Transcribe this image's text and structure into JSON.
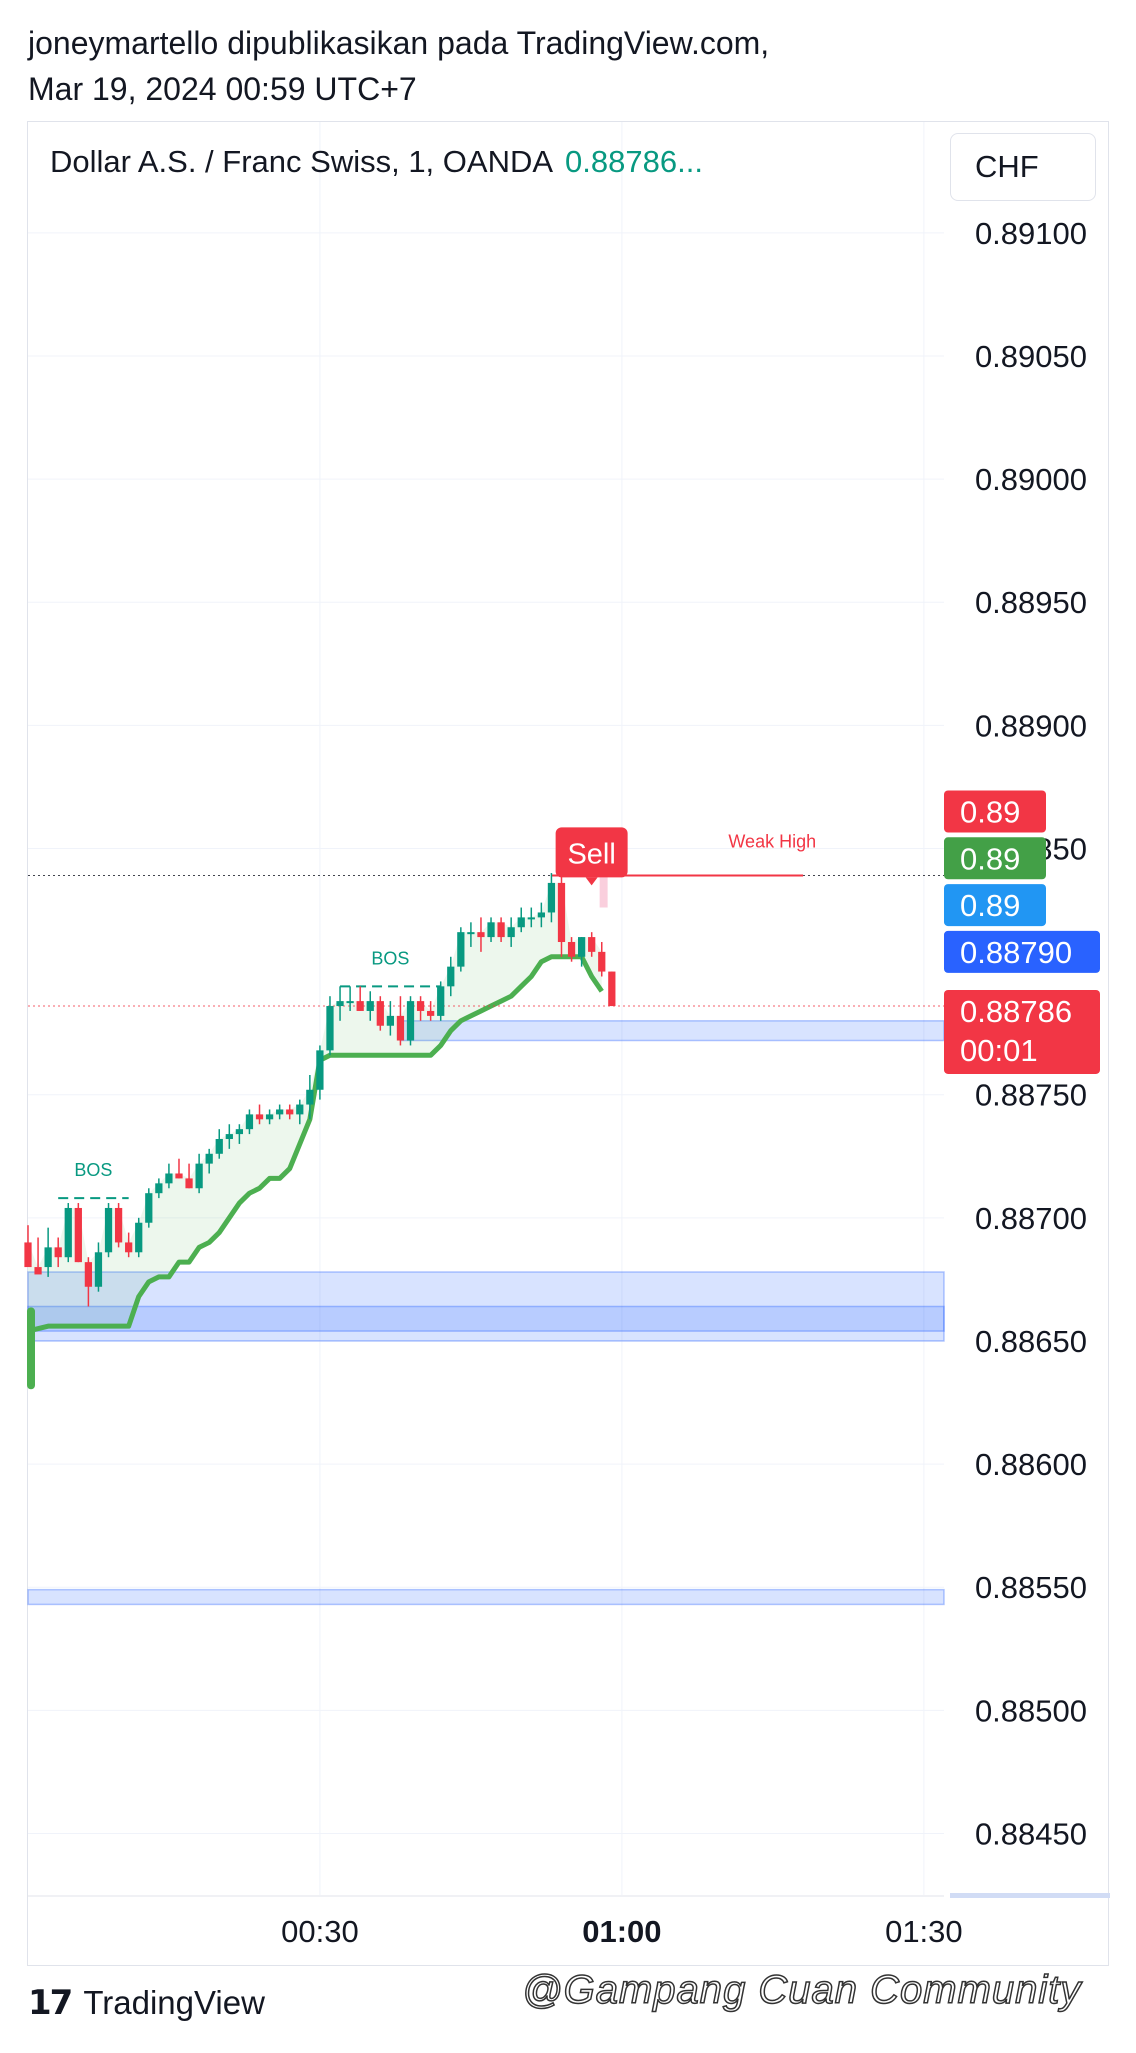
{
  "header": {
    "line1": "joneymartello dipublikasikan pada TradingView.com,",
    "line2": "Mar 19, 2024 00:59 UTC+7"
  },
  "symbol": {
    "title": "Dollar A.S. / Franc Swiss, 1, OANDA",
    "price": "0.88786..."
  },
  "currency_button": "CHF",
  "footer": {
    "brand_mark": "17",
    "brand": "TradingView"
  },
  "watermark": "@Gampang Cuan Community",
  "colors": {
    "up": "#089981",
    "down": "#f23645",
    "trail": "#4caf50",
    "zone": "#2962ff",
    "blue_tag": "#2196f3",
    "dark_blue_tag": "#2962ff"
  },
  "chart_data": {
    "type": "candlestick",
    "ylim": [
      0.88425,
      0.89145
    ],
    "y_ticks": [
      "0.89100",
      "0.89050",
      "0.89000",
      "0.88950",
      "0.88900",
      "0.88850",
      "0.88750",
      "0.88700",
      "0.88650",
      "0.88600",
      "0.88550",
      "0.88500",
      "0.88450"
    ],
    "x_ticks": [
      {
        "t": 30,
        "label": "00:30",
        "bold": false
      },
      {
        "t": 60,
        "label": "01:00",
        "bold": true
      },
      {
        "t": 90,
        "label": "01:30",
        "bold": false
      }
    ],
    "x_range": [
      1,
      92
    ],
    "candles": [
      [
        1,
        0.8869,
        0.88697,
        0.88682,
        0.8868
      ],
      [
        2,
        0.8868,
        0.88692,
        0.8868,
        0.88677
      ],
      [
        3,
        0.8868,
        0.88696,
        0.88676,
        0.88688
      ],
      [
        4,
        0.88688,
        0.88692,
        0.8868,
        0.88684
      ],
      [
        5,
        0.88684,
        0.88706,
        0.88682,
        0.88704
      ],
      [
        6,
        0.88704,
        0.88706,
        0.88682,
        0.88682
      ],
      [
        7,
        0.88682,
        0.88684,
        0.88664,
        0.88672
      ],
      [
        8,
        0.88672,
        0.8869,
        0.8867,
        0.88686
      ],
      [
        9,
        0.88686,
        0.88706,
        0.88684,
        0.88704
      ],
      [
        10,
        0.88704,
        0.88706,
        0.88688,
        0.8869
      ],
      [
        11,
        0.8869,
        0.88694,
        0.88684,
        0.88686
      ],
      [
        12,
        0.88686,
        0.887,
        0.88684,
        0.88698
      ],
      [
        13,
        0.88698,
        0.88712,
        0.88696,
        0.8871
      ],
      [
        14,
        0.8871,
        0.88716,
        0.88708,
        0.88714
      ],
      [
        15,
        0.88714,
        0.88722,
        0.88712,
        0.88718
      ],
      [
        16,
        0.88718,
        0.88724,
        0.88716,
        0.88716
      ],
      [
        17,
        0.88716,
        0.88722,
        0.88712,
        0.88712
      ],
      [
        18,
        0.88712,
        0.88726,
        0.8871,
        0.88722
      ],
      [
        19,
        0.88722,
        0.88728,
        0.88718,
        0.88726
      ],
      [
        20,
        0.88726,
        0.88736,
        0.88724,
        0.88732
      ],
      [
        21,
        0.88732,
        0.88738,
        0.88728,
        0.88734
      ],
      [
        22,
        0.88734,
        0.88738,
        0.8873,
        0.88736
      ],
      [
        23,
        0.88736,
        0.88744,
        0.88734,
        0.88742
      ],
      [
        24,
        0.88742,
        0.88746,
        0.88738,
        0.8874
      ],
      [
        25,
        0.8874,
        0.88744,
        0.88738,
        0.88742
      ],
      [
        26,
        0.88742,
        0.88746,
        0.8874,
        0.88744
      ],
      [
        27,
        0.88744,
        0.88746,
        0.8874,
        0.88742
      ],
      [
        28,
        0.88742,
        0.88748,
        0.88738,
        0.88746
      ],
      [
        29,
        0.88746,
        0.88758,
        0.8874,
        0.88752
      ],
      [
        30,
        0.88752,
        0.8877,
        0.88748,
        0.88768
      ],
      [
        31,
        0.88768,
        0.8879,
        0.88766,
        0.88786
      ],
      [
        32,
        0.88786,
        0.88794,
        0.8878,
        0.88788
      ],
      [
        33,
        0.88788,
        0.88794,
        0.88784,
        0.88788
      ],
      [
        34,
        0.88788,
        0.88794,
        0.88784,
        0.88784
      ],
      [
        35,
        0.88784,
        0.88792,
        0.8878,
        0.88788
      ],
      [
        36,
        0.88788,
        0.8879,
        0.88776,
        0.88778
      ],
      [
        37,
        0.88778,
        0.88788,
        0.88774,
        0.88782
      ],
      [
        38,
        0.88782,
        0.8879,
        0.8877,
        0.88772
      ],
      [
        39,
        0.88772,
        0.8879,
        0.8877,
        0.88788
      ],
      [
        40,
        0.88788,
        0.8879,
        0.8878,
        0.88784
      ],
      [
        41,
        0.88784,
        0.88788,
        0.8878,
        0.88782
      ],
      [
        42,
        0.88782,
        0.88796,
        0.8878,
        0.88794
      ],
      [
        43,
        0.88794,
        0.88806,
        0.8879,
        0.88802
      ],
      [
        44,
        0.88802,
        0.88818,
        0.888,
        0.88816
      ],
      [
        45,
        0.88816,
        0.8882,
        0.8881,
        0.88816
      ],
      [
        46,
        0.88816,
        0.88822,
        0.88808,
        0.88814
      ],
      [
        47,
        0.88814,
        0.88822,
        0.88812,
        0.8882
      ],
      [
        48,
        0.8882,
        0.88822,
        0.88812,
        0.88814
      ],
      [
        49,
        0.88814,
        0.88822,
        0.8881,
        0.88818
      ],
      [
        50,
        0.88818,
        0.88826,
        0.88816,
        0.88822
      ],
      [
        51,
        0.88822,
        0.88826,
        0.88818,
        0.88822
      ],
      [
        52,
        0.88822,
        0.88828,
        0.88818,
        0.88824
      ],
      [
        53,
        0.88824,
        0.8884,
        0.8882,
        0.88836
      ],
      [
        54,
        0.88836,
        0.8884,
        0.88806,
        0.88812
      ],
      [
        55,
        0.88812,
        0.88814,
        0.88804,
        0.88806
      ],
      [
        56,
        0.88806,
        0.88814,
        0.88802,
        0.88814
      ],
      [
        57,
        0.88814,
        0.88816,
        0.88806,
        0.88808
      ],
      [
        58,
        0.88808,
        0.88812,
        0.88798,
        0.888
      ],
      [
        59,
        0.888,
        0.888,
        0.88786,
        0.88786
      ]
    ],
    "trailing_line": [
      [
        1,
        0.88654
      ],
      [
        3,
        0.88656
      ],
      [
        9,
        0.88656
      ],
      [
        11,
        0.88656
      ],
      [
        12,
        0.88668
      ],
      [
        13,
        0.88674
      ],
      [
        14,
        0.88676
      ],
      [
        15,
        0.88676
      ],
      [
        16,
        0.88682
      ],
      [
        17,
        0.88682
      ],
      [
        18,
        0.88688
      ],
      [
        19,
        0.8869
      ],
      [
        20,
        0.88694
      ],
      [
        21,
        0.887
      ],
      [
        22,
        0.88706
      ],
      [
        23,
        0.8871
      ],
      [
        24,
        0.88712
      ],
      [
        25,
        0.88716
      ],
      [
        26,
        0.88716
      ],
      [
        27,
        0.8872
      ],
      [
        28,
        0.8873
      ],
      [
        29,
        0.8874
      ],
      [
        30,
        0.88764
      ],
      [
        31,
        0.88766
      ],
      [
        32,
        0.88766
      ],
      [
        38,
        0.88766
      ],
      [
        40,
        0.88766
      ],
      [
        41,
        0.88766
      ],
      [
        42,
        0.8877
      ],
      [
        43,
        0.88776
      ],
      [
        44,
        0.8878
      ],
      [
        45,
        0.88782
      ],
      [
        46,
        0.88784
      ],
      [
        47,
        0.88786
      ],
      [
        48,
        0.88788
      ],
      [
        49,
        0.8879
      ],
      [
        50,
        0.88794
      ],
      [
        51,
        0.88798
      ],
      [
        52,
        0.88804
      ],
      [
        53,
        0.88806
      ],
      [
        55,
        0.88806
      ],
      [
        56,
        0.88806
      ],
      [
        57,
        0.88798
      ],
      [
        58,
        0.88792
      ]
    ],
    "zones": [
      {
        "y1": 0.88678,
        "y2": 0.8865,
        "t1": 1,
        "t2": 92
      },
      {
        "y1": 0.88664,
        "y2": 0.88654,
        "t1": 1,
        "t2": 92
      },
      {
        "y1": 0.8878,
        "y2": 0.88772,
        "t1": 38,
        "t2": 92
      },
      {
        "y1": 0.88549,
        "y2": 0.88543,
        "t1": 1,
        "t2": 92
      }
    ],
    "bos": [
      {
        "label": "BOS",
        "y": 0.88708,
        "t1": 4,
        "t2": 11
      },
      {
        "label": "BOS",
        "y": 0.88794,
        "t1": 32,
        "t2": 42
      }
    ],
    "weak_high": {
      "label": "Weak High",
      "y": 0.88839,
      "t1": 53,
      "t2": 78
    },
    "sell_signal": {
      "label": "Sell",
      "t": 56,
      "y": 0.88848
    },
    "horizontal_lines": [
      {
        "y": 0.88839,
        "color": "#131722"
      },
      {
        "y": 0.88786,
        "color": "#f23645"
      }
    ],
    "price_tags": [
      {
        "text": "0.89",
        "y": 0.88865,
        "color": "#f23645"
      },
      {
        "text": "0.89",
        "y": 0.88846,
        "color": "#43a047"
      },
      {
        "text": "0.89",
        "y": 0.88827,
        "color": "#2196f3"
      },
      {
        "text": "0.88790",
        "y": 0.88808,
        "color": "#2962ff"
      },
      {
        "text": "0.88786",
        "text2": "00:01",
        "y": 0.88784,
        "color": "#f23645"
      }
    ]
  }
}
